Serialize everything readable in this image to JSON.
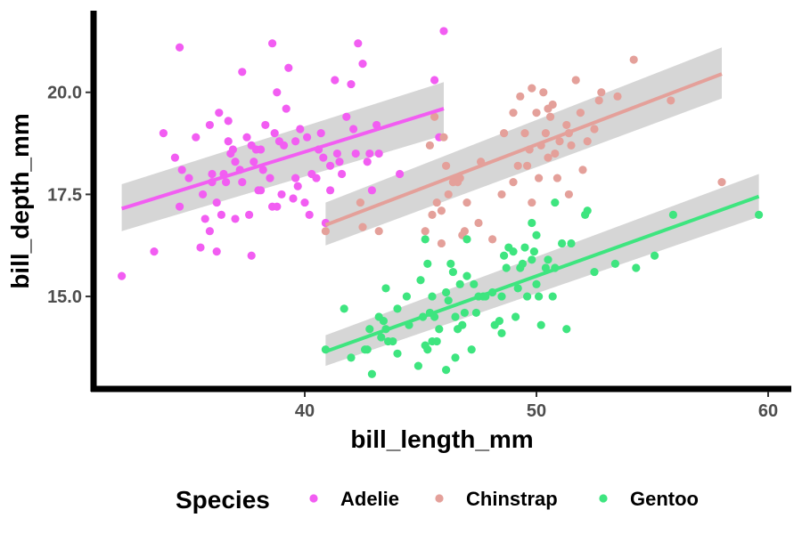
{
  "chart_data": {
    "type": "scatter",
    "xlabel": "bill_length_mm",
    "ylabel": "bill_depth_mm",
    "xlim": [
      31.0,
      61.0
    ],
    "ylim": [
      12.8,
      22.0
    ],
    "x_ticks": [
      40,
      50,
      60
    ],
    "x_tick_labels": [
      "40",
      "50",
      "60"
    ],
    "y_ticks": [
      15.0,
      17.5,
      20.0
    ],
    "y_tick_labels": [
      "15.0",
      "17.5",
      "20.0"
    ],
    "grid": false,
    "legend": {
      "title": "Species",
      "position": "bottom"
    },
    "series": [
      {
        "name": "Adelie",
        "color": "#f25df2",
        "trend": {
          "x": [
            32.1,
            46.0
          ],
          "y": [
            17.15,
            19.6
          ],
          "ci_lower": [
            16.6,
            18.95
          ],
          "ci_upper": [
            17.75,
            20.25
          ]
        },
        "points": [
          [
            32.1,
            15.5
          ],
          [
            33.5,
            16.1
          ],
          [
            33.9,
            19.0
          ],
          [
            34.4,
            18.4
          ],
          [
            34.6,
            21.1
          ],
          [
            34.6,
            17.2
          ],
          [
            34.7,
            18.1
          ],
          [
            35.0,
            17.9
          ],
          [
            35.3,
            18.9
          ],
          [
            35.5,
            16.2
          ],
          [
            35.6,
            17.5
          ],
          [
            35.7,
            16.9
          ],
          [
            35.9,
            19.2
          ],
          [
            35.9,
            16.6
          ],
          [
            36.0,
            18.0
          ],
          [
            36.0,
            17.8
          ],
          [
            36.2,
            16.1
          ],
          [
            36.2,
            17.3
          ],
          [
            36.3,
            19.5
          ],
          [
            36.4,
            17.0
          ],
          [
            36.5,
            18.0
          ],
          [
            36.6,
            17.8
          ],
          [
            36.7,
            19.3
          ],
          [
            36.7,
            18.8
          ],
          [
            36.8,
            18.5
          ],
          [
            36.9,
            18.6
          ],
          [
            37.0,
            16.9
          ],
          [
            37.2,
            18.1
          ],
          [
            37.3,
            17.8
          ],
          [
            37.3,
            20.5
          ],
          [
            37.5,
            18.9
          ],
          [
            37.6,
            17.0
          ],
          [
            37.7,
            18.7
          ],
          [
            37.7,
            16.0
          ],
          [
            37.8,
            18.3
          ],
          [
            37.9,
            18.6
          ],
          [
            38.1,
            18.6
          ],
          [
            38.1,
            17.6
          ],
          [
            38.2,
            18.1
          ],
          [
            38.3,
            19.2
          ],
          [
            38.5,
            17.9
          ],
          [
            38.6,
            21.2
          ],
          [
            38.6,
            17.2
          ],
          [
            38.7,
            19.0
          ],
          [
            38.8,
            17.2
          ],
          [
            38.8,
            20.0
          ],
          [
            38.9,
            18.8
          ],
          [
            39.0,
            17.5
          ],
          [
            39.1,
            18.7
          ],
          [
            39.2,
            19.6
          ],
          [
            39.3,
            20.6
          ],
          [
            39.5,
            17.4
          ],
          [
            39.6,
            18.8
          ],
          [
            39.7,
            17.7
          ],
          [
            39.8,
            19.1
          ],
          [
            40.1,
            18.9
          ],
          [
            40.2,
            17.0
          ],
          [
            40.3,
            18.0
          ],
          [
            40.5,
            17.9
          ],
          [
            40.6,
            18.6
          ],
          [
            40.7,
            19.0
          ],
          [
            40.8,
            18.4
          ],
          [
            40.9,
            16.8
          ],
          [
            41.1,
            18.2
          ],
          [
            41.1,
            17.6
          ],
          [
            41.3,
            20.3
          ],
          [
            41.4,
            18.5
          ],
          [
            41.5,
            18.3
          ],
          [
            41.6,
            18.0
          ],
          [
            41.8,
            19.4
          ],
          [
            42.0,
            20.2
          ],
          [
            42.1,
            19.1
          ],
          [
            42.2,
            18.5
          ],
          [
            42.3,
            21.2
          ],
          [
            42.5,
            20.7
          ],
          [
            42.7,
            18.3
          ],
          [
            42.8,
            18.5
          ],
          [
            42.9,
            17.6
          ],
          [
            43.1,
            19.2
          ],
          [
            43.2,
            18.5
          ],
          [
            44.1,
            18.0
          ],
          [
            45.8,
            18.9
          ],
          [
            46.0,
            21.5
          ],
          [
            45.6,
            20.3
          ],
          [
            40.0,
            17.3
          ],
          [
            39.6,
            17.9
          ],
          [
            37.0,
            18.3
          ],
          [
            38.0,
            17.6
          ]
        ]
      },
      {
        "name": "Chinstrap",
        "color": "#e4a09a",
        "trend": {
          "x": [
            40.9,
            58.0
          ],
          "y": [
            16.75,
            20.45
          ],
          "ci_lower": [
            16.25,
            19.85
          ],
          "ci_upper": [
            17.3,
            21.1
          ]
        },
        "points": [
          [
            40.9,
            16.6
          ],
          [
            42.4,
            17.3
          ],
          [
            42.5,
            16.7
          ],
          [
            43.2,
            16.6
          ],
          [
            45.2,
            16.6
          ],
          [
            45.4,
            18.7
          ],
          [
            45.5,
            17.0
          ],
          [
            45.6,
            19.4
          ],
          [
            45.7,
            17.3
          ],
          [
            45.9,
            17.1
          ],
          [
            46.0,
            18.9
          ],
          [
            46.1,
            18.2
          ],
          [
            46.2,
            17.5
          ],
          [
            46.4,
            17.8
          ],
          [
            46.5,
            17.9
          ],
          [
            46.6,
            17.8
          ],
          [
            46.7,
            17.9
          ],
          [
            46.8,
            16.5
          ],
          [
            46.9,
            16.6
          ],
          [
            47.0,
            17.3
          ],
          [
            47.5,
            16.8
          ],
          [
            47.6,
            18.3
          ],
          [
            48.1,
            16.4
          ],
          [
            48.5,
            17.5
          ],
          [
            48.6,
            19.0
          ],
          [
            49.0,
            19.5
          ],
          [
            49.2,
            18.2
          ],
          [
            49.3,
            19.9
          ],
          [
            49.5,
            19.0
          ],
          [
            49.6,
            18.2
          ],
          [
            49.7,
            18.6
          ],
          [
            49.8,
            17.3
          ],
          [
            50.0,
            19.5
          ],
          [
            50.1,
            17.9
          ],
          [
            50.2,
            18.7
          ],
          [
            50.3,
            20.0
          ],
          [
            50.4,
            19.0
          ],
          [
            50.5,
            18.4
          ],
          [
            50.6,
            19.4
          ],
          [
            50.7,
            19.7
          ],
          [
            50.8,
            18.5
          ],
          [
            50.9,
            17.9
          ],
          [
            51.0,
            18.8
          ],
          [
            51.3,
            19.2
          ],
          [
            51.4,
            19.0
          ],
          [
            51.5,
            18.7
          ],
          [
            51.7,
            20.3
          ],
          [
            51.9,
            19.5
          ],
          [
            52.0,
            18.1
          ],
          [
            52.2,
            18.8
          ],
          [
            52.5,
            19.1
          ],
          [
            52.7,
            19.8
          ],
          [
            52.8,
            20.0
          ],
          [
            53.5,
            19.9
          ],
          [
            54.2,
            20.8
          ],
          [
            55.8,
            19.8
          ],
          [
            58.0,
            17.8
          ],
          [
            50.5,
            19.6
          ],
          [
            49.0,
            17.8
          ],
          [
            45.9,
            16.3
          ],
          [
            51.4,
            17.5
          ],
          [
            49.8,
            20.1
          ]
        ]
      },
      {
        "name": "Gentoo",
        "color": "#3ee57f",
        "trend": {
          "x": [
            40.9,
            59.6
          ],
          "y": [
            13.65,
            17.45
          ],
          "ci_lower": [
            13.3,
            16.95
          ],
          "ci_upper": [
            14.05,
            18.0
          ]
        },
        "points": [
          [
            40.9,
            13.7
          ],
          [
            41.7,
            14.7
          ],
          [
            42.0,
            13.5
          ],
          [
            42.6,
            13.7
          ],
          [
            42.7,
            13.7
          ],
          [
            42.8,
            14.2
          ],
          [
            42.9,
            13.1
          ],
          [
            43.2,
            14.5
          ],
          [
            43.3,
            14.0
          ],
          [
            43.4,
            14.4
          ],
          [
            43.5,
            14.2
          ],
          [
            43.6,
            13.9
          ],
          [
            43.8,
            13.9
          ],
          [
            44.0,
            13.6
          ],
          [
            44.4,
            15.0
          ],
          [
            44.5,
            14.3
          ],
          [
            44.9,
            13.3
          ],
          [
            45.0,
            15.4
          ],
          [
            45.1,
            14.5
          ],
          [
            45.2,
            13.8
          ],
          [
            45.3,
            13.7
          ],
          [
            45.4,
            14.6
          ],
          [
            45.5,
            13.9
          ],
          [
            45.5,
            15.0
          ],
          [
            45.6,
            14.5
          ],
          [
            45.7,
            13.9
          ],
          [
            45.8,
            14.2
          ],
          [
            46.1,
            15.1
          ],
          [
            46.2,
            14.9
          ],
          [
            46.3,
            15.8
          ],
          [
            46.4,
            15.6
          ],
          [
            46.5,
            14.5
          ],
          [
            46.6,
            14.2
          ],
          [
            46.7,
            15.3
          ],
          [
            46.8,
            14.3
          ],
          [
            46.9,
            14.6
          ],
          [
            47.0,
            15.5
          ],
          [
            47.2,
            13.7
          ],
          [
            47.3,
            15.3
          ],
          [
            47.4,
            14.6
          ],
          [
            47.5,
            15.0
          ],
          [
            47.7,
            15.0
          ],
          [
            47.8,
            15.0
          ],
          [
            48.1,
            15.1
          ],
          [
            48.2,
            14.3
          ],
          [
            48.4,
            14.4
          ],
          [
            48.5,
            15.0
          ],
          [
            48.6,
            16.0
          ],
          [
            48.7,
            15.7
          ],
          [
            48.8,
            16.2
          ],
          [
            49.0,
            16.1
          ],
          [
            49.1,
            14.5
          ],
          [
            49.2,
            15.2
          ],
          [
            49.3,
            15.7
          ],
          [
            49.4,
            15.8
          ],
          [
            49.5,
            16.2
          ],
          [
            49.6,
            15.0
          ],
          [
            49.8,
            15.9
          ],
          [
            49.9,
            16.1
          ],
          [
            50.0,
            15.3
          ],
          [
            50.1,
            15.0
          ],
          [
            50.2,
            14.3
          ],
          [
            50.4,
            15.7
          ],
          [
            50.5,
            15.9
          ],
          [
            50.7,
            15.0
          ],
          [
            50.8,
            15.7
          ],
          [
            51.1,
            16.3
          ],
          [
            51.3,
            14.2
          ],
          [
            51.5,
            16.3
          ],
          [
            52.1,
            17.0
          ],
          [
            52.2,
            17.1
          ],
          [
            52.5,
            15.6
          ],
          [
            53.4,
            15.8
          ],
          [
            54.3,
            15.7
          ],
          [
            55.1,
            16.0
          ],
          [
            55.9,
            17.0
          ],
          [
            59.6,
            17.0
          ],
          [
            44.0,
            14.7
          ],
          [
            46.1,
            13.2
          ],
          [
            48.5,
            14.1
          ],
          [
            47.0,
            16.4
          ],
          [
            45.2,
            16.4
          ],
          [
            50.8,
            17.3
          ],
          [
            45.3,
            15.8
          ],
          [
            43.5,
            15.2
          ],
          [
            46.5,
            13.5
          ],
          [
            49.8,
            16.8
          ],
          [
            50.0,
            16.5
          ]
        ]
      }
    ]
  }
}
